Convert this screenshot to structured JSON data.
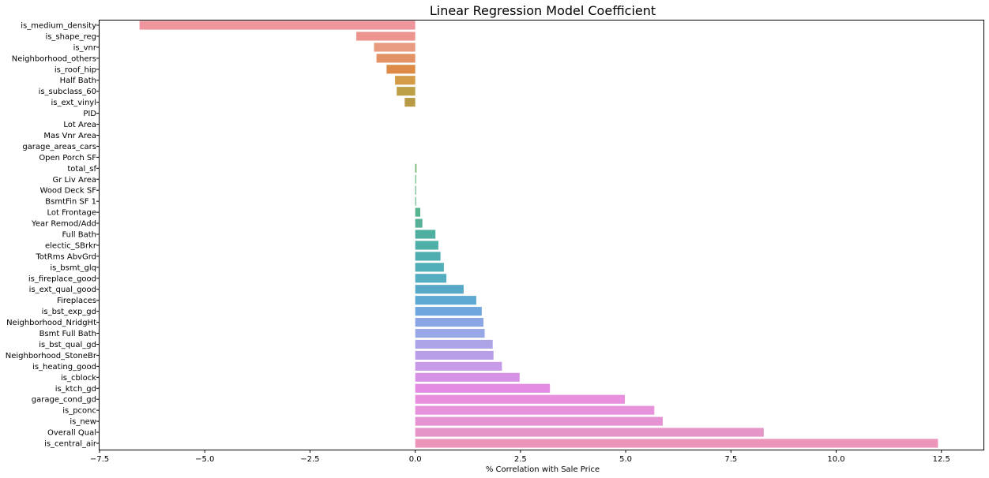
{
  "chart_data": {
    "type": "bar",
    "orientation": "horizontal",
    "title": "Linear Regression Model Coefficient",
    "xlabel": "% Correlation with Sale Price",
    "ylabel": "",
    "xlim": [
      -7.5,
      13.5
    ],
    "xticks": [
      "−7.5",
      "−5.0",
      "−2.5",
      "0.0",
      "2.5",
      "5.0",
      "7.5",
      "10.0",
      "12.5"
    ],
    "xtick_values": [
      -7.5,
      -5.0,
      -2.5,
      0.0,
      2.5,
      5.0,
      7.5,
      10.0,
      12.5
    ],
    "grid": false,
    "categories": [
      "is_medium_density",
      "is_shape_reg",
      "is_vnr",
      "Neighborhood_others",
      "is_roof_hip",
      "Half Bath",
      "is_subclass_60",
      "is_ext_vinyl",
      "PID",
      "Lot Area",
      "Mas Vnr Area",
      "garage_areas_cars",
      "Open Porch SF",
      "total_sf",
      "Gr Liv Area",
      "Wood Deck SF",
      "BsmtFin SF 1",
      "Lot Frontage",
      "Year Remod/Add",
      "Full Bath",
      "electic_SBrkr",
      "TotRms AbvGrd",
      "is_bsmt_glq",
      "is_fireplace_good",
      "is_ext_qual_good",
      "Fireplaces",
      "is_bst_exp_gd",
      "Neighborhood_NridgHt",
      "Bsmt Full Bath",
      "is_bst_qual_gd",
      "Neighborhood_StoneBr",
      "is_heating_good",
      "is_cblock",
      "is_ktch_gd",
      "garage_cond_gd",
      "is_pconc",
      "is_new",
      "Overall Qual",
      "is_central_air"
    ],
    "values": [
      -6.55,
      -1.4,
      -0.98,
      -0.92,
      -0.68,
      -0.48,
      -0.44,
      -0.25,
      0.0,
      0.0,
      0.0,
      0.0,
      0.0,
      0.03,
      0.02,
      0.02,
      0.02,
      0.12,
      0.17,
      0.48,
      0.55,
      0.6,
      0.68,
      0.74,
      1.15,
      1.45,
      1.58,
      1.62,
      1.65,
      1.84,
      1.86,
      2.06,
      2.48,
      3.2,
      4.98,
      5.68,
      5.88,
      8.28,
      12.42
    ],
    "colors": [
      "#ee959d",
      "#ec958f",
      "#e99b82",
      "#e39266",
      "#dd8a47",
      "#d39b48",
      "#bd9f48",
      "#b99a44",
      "#a8a348",
      "#9ca64a",
      "#8ea949",
      "#81ad4b",
      "#6fb24e",
      "#6ab062",
      "#5eb16b",
      "#55b074",
      "#54b37f",
      "#56b490",
      "#55b097",
      "#4fb0a2",
      "#4eaea8",
      "#4dadaf",
      "#51afb8",
      "#54adc1",
      "#58a9c8",
      "#5da7d3",
      "#6ea6dd",
      "#89a5e4",
      "#98a7e6",
      "#aba5e8",
      "#b89ee8",
      "#c89be8",
      "#d693e6",
      "#e38ae2",
      "#e890de",
      "#e992dc",
      "#e693d3",
      "#e595c7",
      "#ec95bb"
    ]
  }
}
